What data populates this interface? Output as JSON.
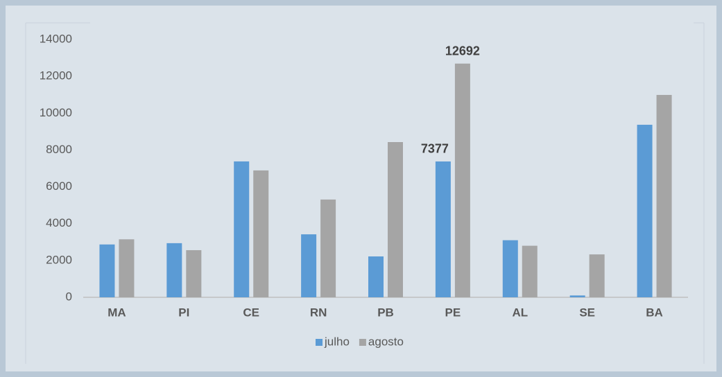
{
  "chart_data": {
    "type": "bar",
    "categories": [
      "MA",
      "PI",
      "CE",
      "RN",
      "PB",
      "PE",
      "AL",
      "SE",
      "BA"
    ],
    "series": [
      {
        "name": "julho",
        "color": "#5b9bd5",
        "values": [
          2870,
          2940,
          7380,
          3420,
          2220,
          7377,
          3100,
          100,
          9370
        ],
        "value_labels": [
          null,
          null,
          null,
          null,
          null,
          "7377",
          null,
          null,
          null
        ]
      },
      {
        "name": "agosto",
        "color": "#a5a5a5",
        "values": [
          3150,
          2560,
          6890,
          5310,
          8430,
          12692,
          2800,
          2330,
          10990
        ],
        "value_labels": [
          null,
          null,
          null,
          null,
          null,
          "12692",
          null,
          null,
          null
        ]
      }
    ],
    "ylim": [
      0,
      14000
    ],
    "yticks": [
      0,
      2000,
      4000,
      6000,
      8000,
      10000,
      12000,
      14000
    ],
    "legend": "bottom"
  }
}
